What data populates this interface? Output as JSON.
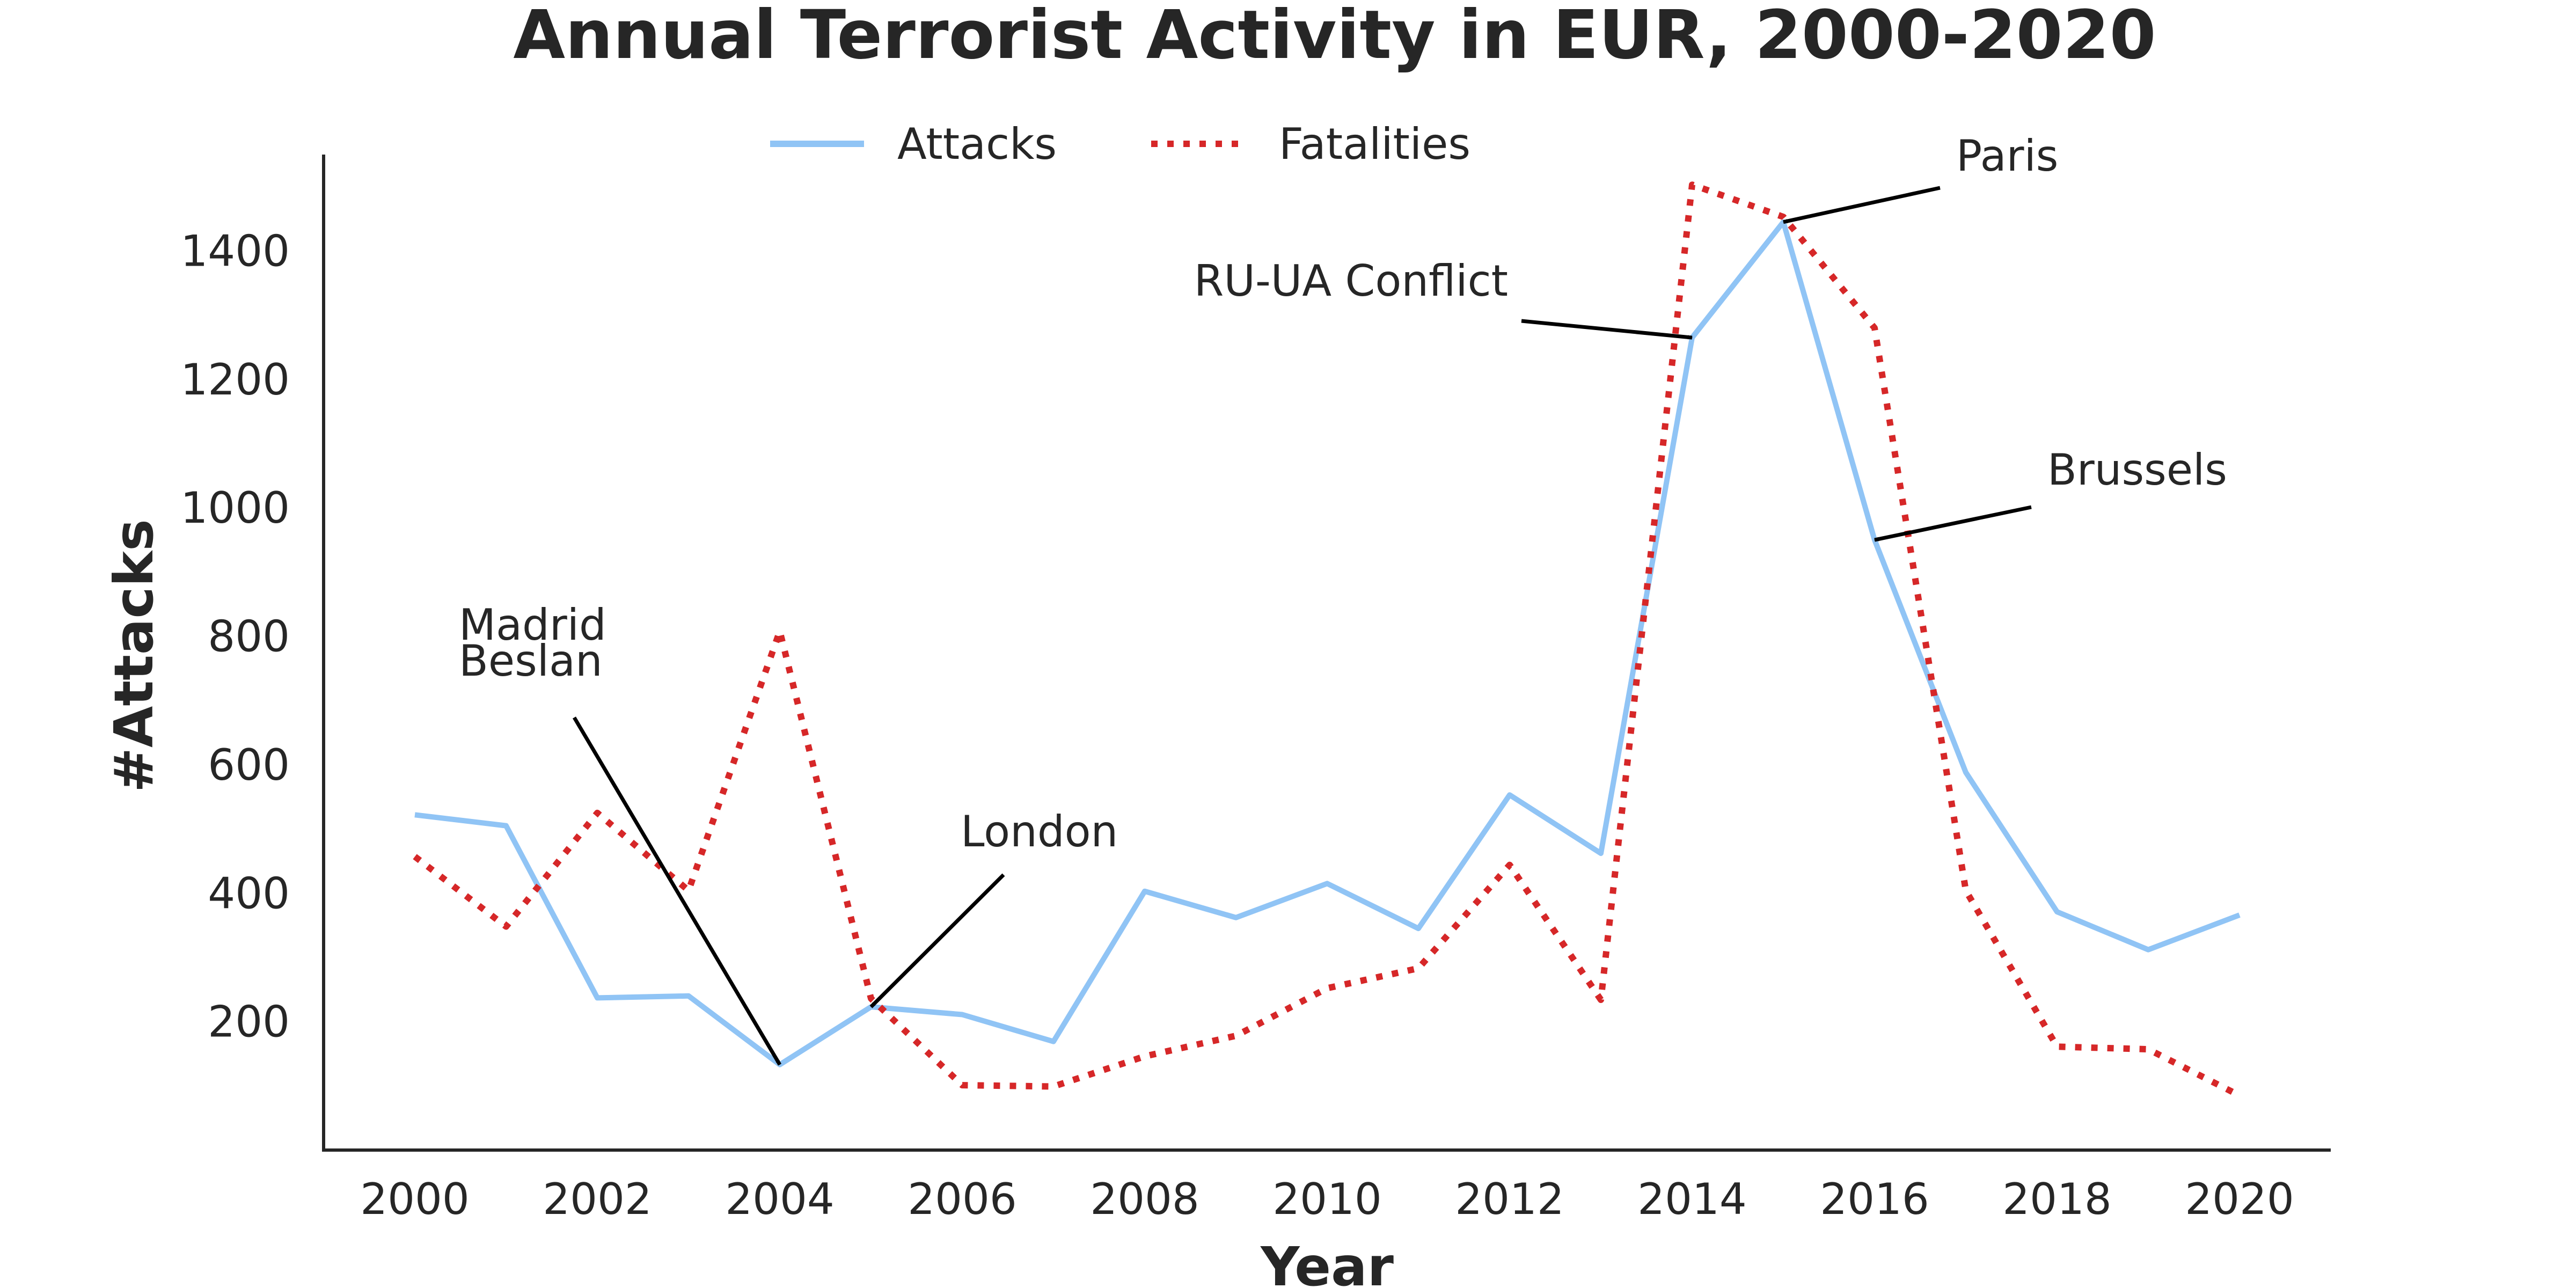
{
  "chart_data": {
    "type": "line",
    "title": "Annual Terrorist Activity in EUR, 2000-2020",
    "xlabel": "Year",
    "ylabel": "#Attacks",
    "xlim": [
      1999,
      2021
    ],
    "ylim": [
      0,
      1550
    ],
    "x": [
      2000,
      2001,
      2002,
      2003,
      2004,
      2005,
      2006,
      2007,
      2008,
      2009,
      2010,
      2011,
      2012,
      2013,
      2014,
      2015,
      2016,
      2017,
      2018,
      2019,
      2020
    ],
    "x_ticks": [
      "2000",
      "2002",
      "2004",
      "2006",
      "2008",
      "2010",
      "2012",
      "2014",
      "2016",
      "2018",
      "2020"
    ],
    "y_ticks": [
      "200",
      "400",
      "600",
      "800",
      "1000",
      "1200",
      "1400"
    ],
    "series": [
      {
        "name": "Attacks",
        "color": "#90c4f5",
        "style": "solid",
        "values": [
          522,
          505,
          237,
          240,
          133,
          223,
          211,
          169,
          403,
          362,
          415,
          345,
          553,
          462,
          1265,
          1445,
          950,
          588,
          371,
          312,
          366
        ]
      },
      {
        "name": "Fatalities",
        "color": "#d62728",
        "style": "dotted",
        "values": [
          457,
          348,
          525,
          404,
          808,
          236,
          101,
          99,
          146,
          178,
          252,
          283,
          444,
          234,
          1503,
          1453,
          1280,
          404,
          161,
          157,
          85
        ]
      }
    ],
    "legend": {
      "placement": "top-center",
      "entries": [
        "Attacks",
        "Fatalities"
      ]
    },
    "grid": false,
    "annotations": [
      {
        "lines": [
          "Madrid",
          "Beslan"
        ],
        "x": 2004,
        "y": 133
      },
      {
        "lines": [
          "London"
        ],
        "x": 2005,
        "y": 223
      },
      {
        "lines": [
          "RU-UA Conflict"
        ],
        "x": 2014,
        "y": 1265
      },
      {
        "lines": [
          "Paris"
        ],
        "x": 2015,
        "y": 1445
      },
      {
        "lines": [
          "Brussels"
        ],
        "x": 2016,
        "y": 950
      }
    ]
  }
}
